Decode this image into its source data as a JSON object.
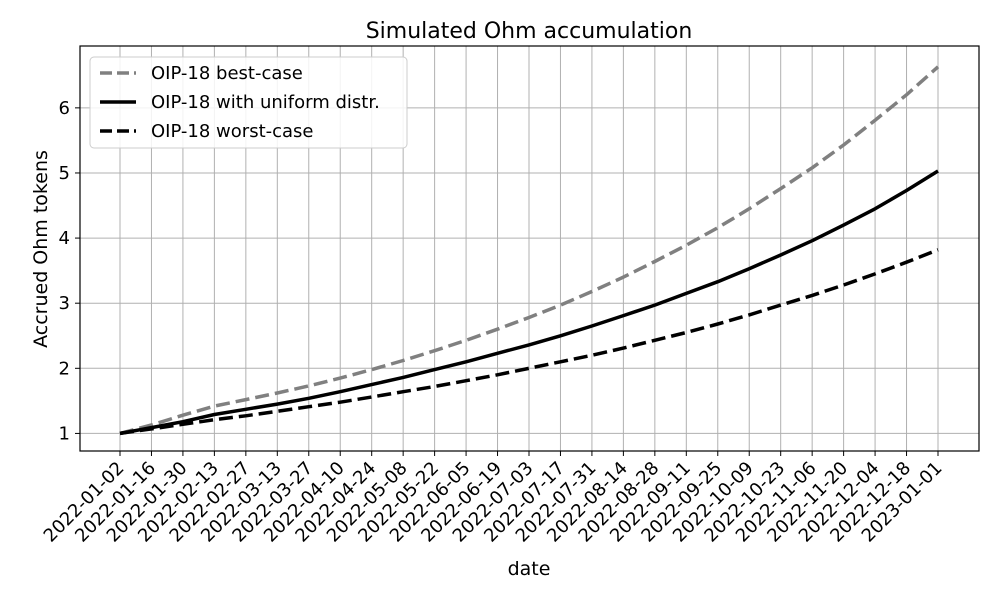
{
  "chart_data": {
    "type": "line",
    "title": "Simulated Ohm accumulation",
    "xlabel": "date",
    "ylabel": "Accrued Ohm tokens",
    "x": [
      "2022-01-02",
      "2022-01-16",
      "2022-01-30",
      "2022-02-13",
      "2022-02-27",
      "2022-03-13",
      "2022-03-27",
      "2022-04-10",
      "2022-04-24",
      "2022-05-08",
      "2022-05-22",
      "2022-06-05",
      "2022-06-19",
      "2022-07-03",
      "2022-07-17",
      "2022-07-31",
      "2022-08-14",
      "2022-08-28",
      "2022-09-11",
      "2022-09-25",
      "2022-10-09",
      "2022-10-23",
      "2022-11-06",
      "2022-11-20",
      "2022-12-04",
      "2022-12-18",
      "2023-01-01"
    ],
    "ylim": [
      0.73,
      6.95
    ],
    "yticks": [
      1,
      2,
      3,
      4,
      5,
      6
    ],
    "grid": true,
    "legend_position": "top-left",
    "series": [
      {
        "name": "OIP-18 best-case",
        "color": "#808080",
        "dash": "dashed",
        "values": [
          1.0,
          1.13,
          1.28,
          1.42,
          1.52,
          1.62,
          1.73,
          1.85,
          1.98,
          2.12,
          2.27,
          2.43,
          2.6,
          2.78,
          2.97,
          3.18,
          3.4,
          3.64,
          3.89,
          4.16,
          4.45,
          4.76,
          5.08,
          5.43,
          5.81,
          6.2,
          6.63
        ]
      },
      {
        "name": "OIP-18 with uniform distr.",
        "color": "#000000",
        "dash": "solid",
        "values": [
          1.0,
          1.09,
          1.18,
          1.29,
          1.37,
          1.45,
          1.54,
          1.64,
          1.75,
          1.86,
          1.98,
          2.1,
          2.23,
          2.36,
          2.5,
          2.65,
          2.81,
          2.97,
          3.15,
          3.33,
          3.53,
          3.74,
          3.96,
          4.2,
          4.45,
          4.73,
          5.03
        ]
      },
      {
        "name": "OIP-18 worst-case",
        "color": "#000000",
        "dash": "dashed",
        "values": [
          1.0,
          1.07,
          1.14,
          1.21,
          1.27,
          1.34,
          1.41,
          1.48,
          1.56,
          1.64,
          1.72,
          1.81,
          1.9,
          2.0,
          2.1,
          2.2,
          2.31,
          2.43,
          2.55,
          2.68,
          2.82,
          2.97,
          3.12,
          3.28,
          3.45,
          3.63,
          3.82
        ]
      }
    ]
  }
}
